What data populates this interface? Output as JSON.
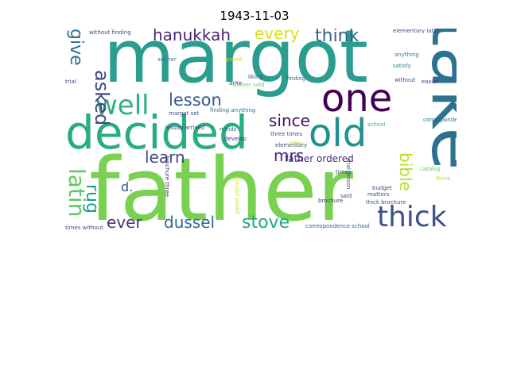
{
  "title": "1943-11-03",
  "words": [
    {
      "text": "father",
      "color": "#7ad151"
    },
    {
      "text": "margot",
      "color": "#2a9d8f"
    },
    {
      "text": "take",
      "color": "#2c728e"
    },
    {
      "text": "decided",
      "color": "#27ad81"
    },
    {
      "text": "one",
      "color": "#440154"
    },
    {
      "text": "old",
      "color": "#21918c"
    },
    {
      "text": "well",
      "color": "#2db27d"
    },
    {
      "text": "thick",
      "color": "#3b528b"
    },
    {
      "text": "hanukkah",
      "color": "#482677"
    },
    {
      "text": "every",
      "color": "#d8e219"
    },
    {
      "text": "think",
      "color": "#33638d"
    },
    {
      "text": "lesson",
      "color": "#39568c"
    },
    {
      "text": "give",
      "color": "#2d708e"
    },
    {
      "text": "asked",
      "color": "#3f4788"
    },
    {
      "text": "since",
      "color": "#471063"
    },
    {
      "text": "learn",
      "color": "#3e4989"
    },
    {
      "text": "mrs",
      "color": "#482475"
    },
    {
      "text": "latin",
      "color": "#5ec962"
    },
    {
      "text": "rug",
      "color": "#1f9e89"
    },
    {
      "text": "bible",
      "color": "#b5de2b"
    },
    {
      "text": "ever",
      "color": "#46337f"
    },
    {
      "text": "dussel",
      "color": "#31688e"
    },
    {
      "text": "stove",
      "color": "#22a884"
    },
    {
      "text": "d.",
      "color": "#3b528b"
    },
    {
      "text": "father ordered",
      "color": "#482878"
    },
    {
      "text": "without finding",
      "color": "#3e4a89"
    },
    {
      "text": "elementary latin.",
      "color": "#3b528b"
    },
    {
      "text": "anything",
      "color": "#2a788e"
    },
    {
      "text": "satisfy",
      "color": "#2a788e"
    },
    {
      "text": "without",
      "color": "#3e4989"
    },
    {
      "text": "easier",
      "color": "#443983"
    },
    {
      "text": "sooner",
      "color": "#2c728e"
    },
    {
      "text": "pored",
      "color": "#bddf26"
    },
    {
      "text": "arite",
      "color": "#46327e"
    },
    {
      "text": "liking",
      "color": "#3b528b"
    },
    {
      "text": "finding",
      "color": "#33638d"
    },
    {
      "text": "sooner said",
      "color": "#6ccd5a"
    },
    {
      "text": "margot set",
      "color": "#3e4a89"
    },
    {
      "text": "finding anything",
      "color": "#2c728e"
    },
    {
      "text": "correspondence",
      "color": "#31688e"
    },
    {
      "text": "school",
      "color": "#35b779"
    },
    {
      "text": "three times",
      "color": "#3b528b"
    },
    {
      "text": "elementary",
      "color": "#3f4788"
    },
    {
      "text": "lesson arrived",
      "color": "#414487"
    },
    {
      "text": "minds",
      "color": "#33638d"
    },
    {
      "text": "develop",
      "color": "#453581"
    },
    {
      "text": "catalog",
      "color": "#5ec962"
    },
    {
      "text": "times",
      "color": "#3e4a89"
    },
    {
      "text": "budget",
      "color": "#3e4989"
    },
    {
      "text": "matters",
      "color": "#3b528b"
    },
    {
      "text": "thick brochure",
      "color": "#3b528b"
    },
    {
      "text": "said",
      "color": "#3f4788"
    },
    {
      "text": "brochure",
      "color": "#46327e"
    },
    {
      "text": "brochure three",
      "color": "#46327e"
    },
    {
      "text": "margot pored",
      "color": "#d2e21b"
    },
    {
      "text": "trial lesson",
      "color": "#3b528b"
    },
    {
      "text": "times without",
      "color": "#3f4788"
    },
    {
      "text": "correspondence school",
      "color": "#355f8d"
    },
    {
      "text": "trial",
      "color": "#3e4989"
    },
    {
      "text": "three",
      "color": "#b5de2b"
    },
    {
      "text": "latin.",
      "color": "#b5de2b"
    }
  ]
}
